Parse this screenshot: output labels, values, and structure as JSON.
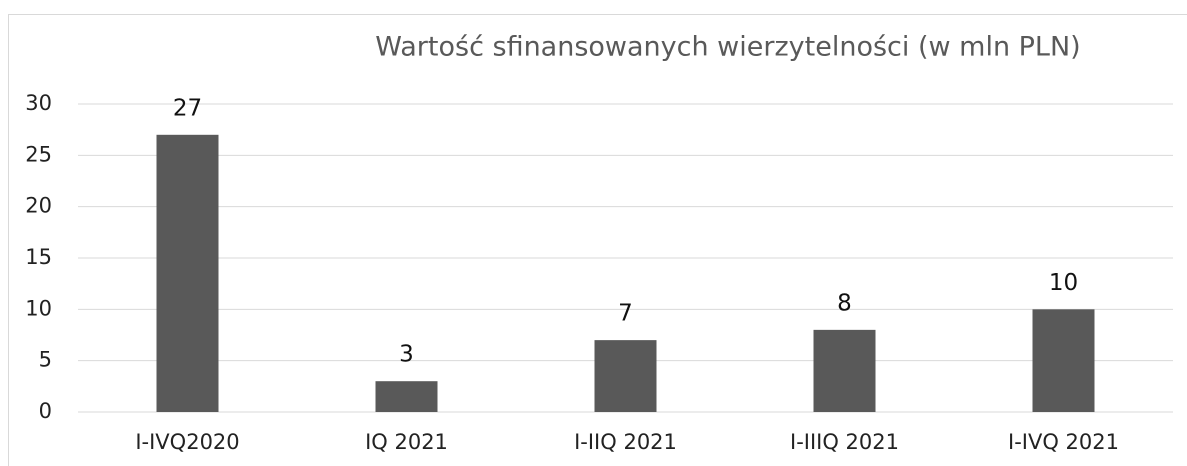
{
  "chart_data": {
    "type": "bar",
    "title": "Wartość sfinansowanych wierzytelności (w mln PLN)",
    "categories": [
      "I-IVQ2020",
      "IQ 2021",
      "I-IIQ 2021",
      "I-IIIQ 2021",
      "I-IVQ 2021"
    ],
    "values": [
      27,
      3,
      7,
      8,
      10
    ],
    "color": "#595959",
    "ylim": [
      0,
      30
    ],
    "yticks": [
      0,
      5,
      10,
      15,
      20,
      25,
      30
    ],
    "grid": true,
    "data_labels": true
  }
}
